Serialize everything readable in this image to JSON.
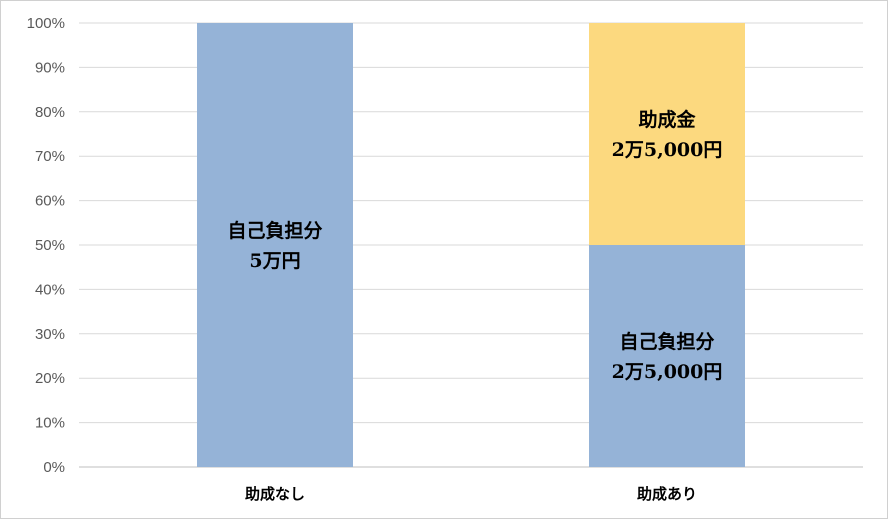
{
  "chart_data": {
    "type": "bar",
    "stacked": true,
    "percent": true,
    "ylim": [
      0,
      100
    ],
    "y_ticks": [
      "0%",
      "10%",
      "20%",
      "30%",
      "40%",
      "50%",
      "60%",
      "70%",
      "80%",
      "90%",
      "100%"
    ],
    "grid": true,
    "categories": [
      "助成なし",
      "助成あり"
    ],
    "segments": [
      {
        "category": 0,
        "bottom": 0,
        "value": 100,
        "color": "#95b3d7",
        "label_lines": [
          "自己負担分",
          "5万円"
        ]
      },
      {
        "category": 1,
        "bottom": 0,
        "value": 50,
        "color": "#95b3d7",
        "label_lines": [
          "自己負担分",
          "2万5,000円"
        ]
      },
      {
        "category": 1,
        "bottom": 50,
        "value": 50,
        "color": "#fcd97f",
        "label_lines": [
          "助成金",
          "2万5,000円"
        ]
      }
    ]
  }
}
